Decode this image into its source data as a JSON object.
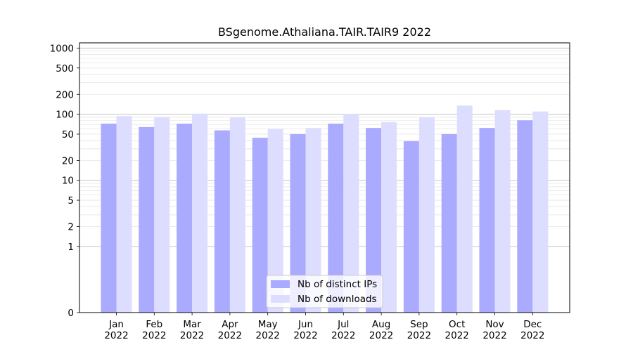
{
  "chart_data": {
    "type": "bar",
    "title": "BSgenome.Athaliana.TAIR.TAIR9 2022",
    "xlabel": "",
    "ylabel": "",
    "yscale": "symlog",
    "ylim": [
      0,
      1200
    ],
    "grid": true,
    "legend_position": "lower center",
    "categories": [
      [
        "Jan",
        "2022"
      ],
      [
        "Feb",
        "2022"
      ],
      [
        "Mar",
        "2022"
      ],
      [
        "Apr",
        "2022"
      ],
      [
        "May",
        "2022"
      ],
      [
        "Jun",
        "2022"
      ],
      [
        "Jul",
        "2022"
      ],
      [
        "Aug",
        "2022"
      ],
      [
        "Sep",
        "2022"
      ],
      [
        "Oct",
        "2022"
      ],
      [
        "Nov",
        "2022"
      ],
      [
        "Dec",
        "2022"
      ]
    ],
    "yticks": [
      {
        "value": 0,
        "label": "0"
      },
      {
        "value": 1,
        "label": "1"
      },
      {
        "value": 2,
        "label": "2"
      },
      {
        "value": 5,
        "label": "5"
      },
      {
        "value": 10,
        "label": "10"
      },
      {
        "value": 20,
        "label": "20"
      },
      {
        "value": 50,
        "label": "50"
      },
      {
        "value": 100,
        "label": "100"
      },
      {
        "value": 200,
        "label": "200"
      },
      {
        "value": 500,
        "label": "500"
      },
      {
        "value": 1000,
        "label": "1000"
      }
    ],
    "series": [
      {
        "name": "Nb of distinct IPs",
        "color": "#aaaaff",
        "values": [
          72,
          64,
          72,
          57,
          44,
          50,
          72,
          62,
          39,
          50,
          62,
          81
        ]
      },
      {
        "name": "Nb of downloads",
        "color": "#ddddff",
        "values": [
          94,
          90,
          102,
          89,
          60,
          62,
          101,
          76,
          89,
          135,
          115,
          110
        ]
      }
    ]
  }
}
